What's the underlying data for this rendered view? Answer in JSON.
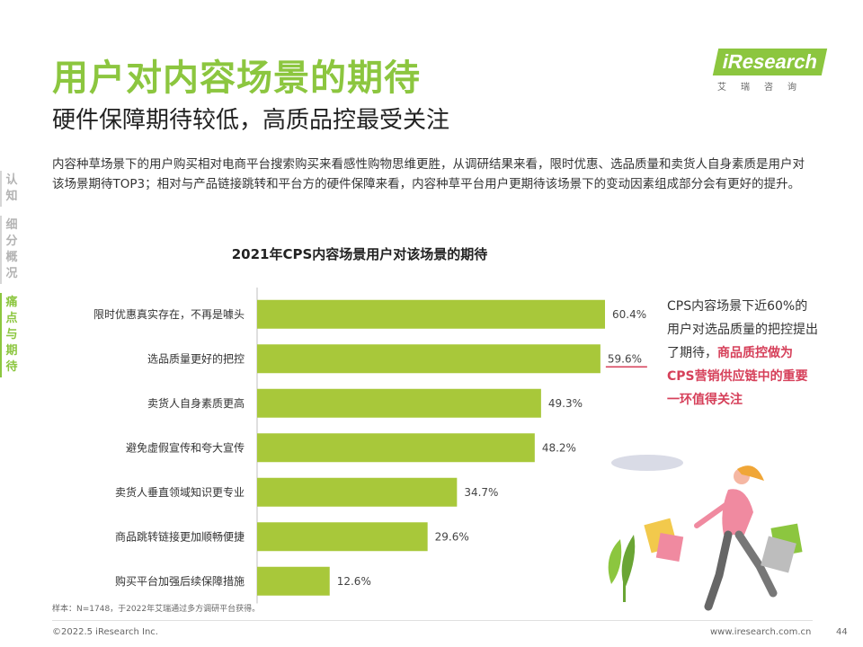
{
  "header": {
    "title": "用户对内容场景的期待",
    "subtitle": "硬件保障期待较低，高质品控最受关注"
  },
  "logo": {
    "name": "iResearch",
    "sub": "艾瑞咨询"
  },
  "description": "内容种草场景下的用户购买相对电商平台搜索购买来看感性购物思维更胜，从调研结果来看，限时优惠、选品质量和卖货人自身素质是用户对该场景期待TOP3；相对与产品链接跳转和平台方的硬件保障来看，内容种草平台用户更期待该场景下的变动因素组成部分会有更好的提升。",
  "side_nav": [
    {
      "label": "认知",
      "active": false
    },
    {
      "label": "细分概况",
      "active": false
    },
    {
      "label": "痛点与期待",
      "active": true
    }
  ],
  "note": {
    "text": "CPS内容场景下近60%的用户对选品质量的把控提出了期待，",
    "highlight": "商品质控做为CPS营销供应链中的重要一环值得关注"
  },
  "source": "样本：N=1748，于2022年艾瑞通过多方调研平台获得。",
  "footer": {
    "copyright": "©2022.5 iResearch Inc.",
    "site": "www.iresearch.com.cn",
    "page": "44"
  },
  "colors": {
    "accent": "#8cc63f",
    "bar": "#a8c83a",
    "highlight": "#d6405a"
  },
  "chart_data": {
    "type": "bar",
    "orientation": "horizontal",
    "title": "2021年CPS内容场景用户对该场景的期待",
    "categories": [
      "限时优惠真实存在，不再是噱头",
      "选品质量更好的把控",
      "卖货人自身素质更高",
      "避免虚假宣传和夸大宣传",
      "卖货人垂直领域知识更专业",
      "商品跳转链接更加顺畅便捷",
      "购买平台加强后续保障措施"
    ],
    "values": [
      60.4,
      59.6,
      49.3,
      48.2,
      34.7,
      29.6,
      12.6
    ],
    "value_labels": [
      "60.4%",
      "59.6%",
      "49.3%",
      "48.2%",
      "34.7%",
      "29.6%",
      "12.6%"
    ],
    "highlight_index": 1,
    "xlim": [
      0,
      70
    ],
    "xlabel": "",
    "ylabel": ""
  }
}
